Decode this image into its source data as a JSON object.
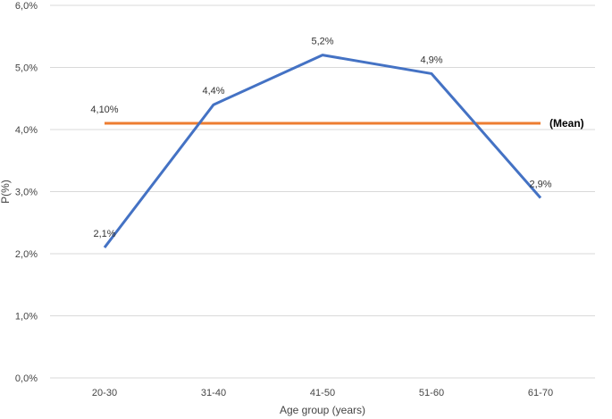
{
  "chart_data": {
    "type": "line",
    "categories": [
      "20-30",
      "31-40",
      "41-50",
      "51-60",
      "61-70"
    ],
    "series": [
      {
        "values": [
          2.1,
          4.4,
          5.2,
          4.9,
          2.9
        ],
        "labels": [
          "2,1%",
          "4,4%",
          "5,2%",
          "4,9%",
          "2,9%"
        ],
        "color": "#4472C4"
      },
      {
        "name": "(Mean)",
        "values": [
          4.1,
          4.1,
          4.1,
          4.1,
          4.1
        ],
        "first_label": "4,10%",
        "color": "#ED7D31"
      }
    ],
    "xlabel": "Age group (years)",
    "ylabel": "P(%)",
    "ylim": [
      0,
      6
    ],
    "yticks": [
      0,
      1,
      2,
      3,
      4,
      5,
      6
    ],
    "ytick_labels": [
      "0,0%",
      "1,0%",
      "2,0%",
      "3,0%",
      "4,0%",
      "5,0%",
      "6,0%"
    ],
    "grid": "horizontal",
    "grid_color": "#D9D9D9"
  }
}
